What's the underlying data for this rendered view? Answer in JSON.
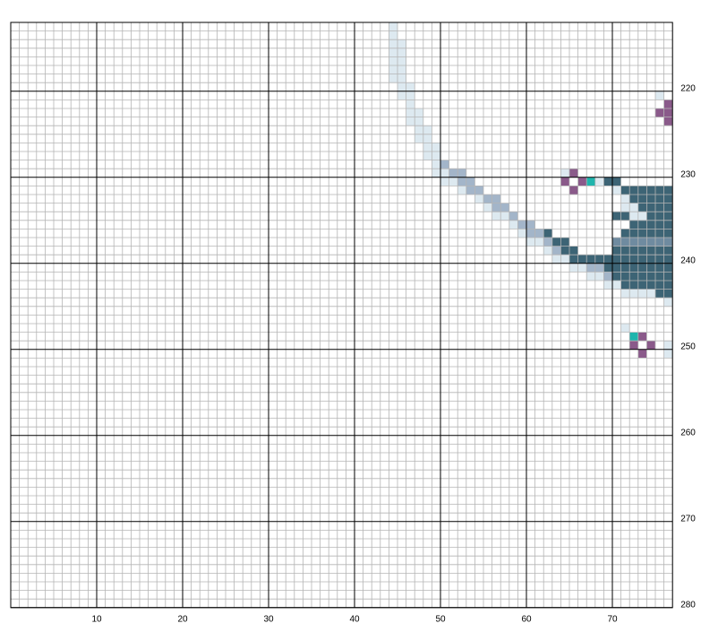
{
  "pattern": {
    "cols": [
      0,
      77
    ],
    "rows": [
      212,
      280
    ],
    "major": 10,
    "x_labels": [
      10,
      20,
      30,
      40,
      50,
      60,
      70
    ],
    "y_labels": [
      220,
      230,
      240,
      250,
      260,
      270,
      280
    ],
    "runs": [
      {
        "row": 212,
        "from": 44,
        "to": 44,
        "color": "#dde9f0"
      },
      {
        "row": 213,
        "from": 44,
        "to": 44,
        "color": "#dde9f0"
      },
      {
        "row": 214,
        "from": 44,
        "to": 45,
        "color": "#dde9f0"
      },
      {
        "row": 215,
        "from": 44,
        "to": 45,
        "color": "#dde9f0"
      },
      {
        "row": 216,
        "from": 44,
        "to": 45,
        "color": "#dde9f0"
      },
      {
        "row": 217,
        "from": 44,
        "to": 45,
        "color": "#dde9f0"
      },
      {
        "row": 218,
        "from": 44,
        "to": 45,
        "color": "#dde9f0"
      },
      {
        "row": 219,
        "from": 45,
        "to": 46,
        "color": "#dde9f0"
      },
      {
        "row": 220,
        "from": 45,
        "to": 46,
        "color": "#dde9f0"
      },
      {
        "row": 220,
        "from": 75,
        "to": 75,
        "color": "#dde9f0"
      },
      {
        "row": 221,
        "from": 46,
        "to": 46,
        "color": "#dde9f0"
      },
      {
        "row": 222,
        "from": 46,
        "to": 47,
        "color": "#dde9f0"
      },
      {
        "row": 223,
        "from": 46,
        "to": 47,
        "color": "#dde9f0"
      },
      {
        "row": 224,
        "from": 47,
        "to": 48,
        "color": "#dde9f0"
      },
      {
        "row": 225,
        "from": 47,
        "to": 48,
        "color": "#dde9f0"
      },
      {
        "row": 226,
        "from": 48,
        "to": 49,
        "color": "#dde9f0"
      },
      {
        "row": 227,
        "from": 48,
        "to": 49,
        "color": "#dde9f0"
      },
      {
        "row": 228,
        "from": 49,
        "to": 49,
        "color": "#dde9f0"
      },
      {
        "row": 228,
        "from": 50,
        "to": 50,
        "color": "#a3b5c9"
      },
      {
        "row": 229,
        "from": 49,
        "to": 50,
        "color": "#dde9f0"
      },
      {
        "row": 229,
        "from": 51,
        "to": 52,
        "color": "#a3b5c9"
      },
      {
        "row": 229,
        "from": 64,
        "to": 64,
        "color": "#dde9f0"
      },
      {
        "row": 230,
        "from": 50,
        "to": 51,
        "color": "#dde9f0"
      },
      {
        "row": 230,
        "from": 52,
        "to": 53,
        "color": "#a3b5c9"
      },
      {
        "row": 230,
        "from": 68,
        "to": 68,
        "color": "#dde9f0"
      },
      {
        "row": 230,
        "from": 69,
        "to": 70,
        "color": "#3d6475"
      },
      {
        "row": 231,
        "from": 52,
        "to": 52,
        "color": "#dde9f0"
      },
      {
        "row": 231,
        "from": 53,
        "to": 54,
        "color": "#a3b5c9"
      },
      {
        "row": 231,
        "from": 70,
        "to": 70,
        "color": "#dde9f0"
      },
      {
        "row": 231,
        "from": 71,
        "to": 76,
        "color": "#3d6475"
      },
      {
        "row": 232,
        "from": 54,
        "to": 54,
        "color": "#dde9f0"
      },
      {
        "row": 232,
        "from": 55,
        "to": 56,
        "color": "#a3b5c9"
      },
      {
        "row": 232,
        "from": 71,
        "to": 71,
        "color": "#dde9f0"
      },
      {
        "row": 232,
        "from": 72,
        "to": 76,
        "color": "#3d6475"
      },
      {
        "row": 233,
        "from": 55,
        "to": 55,
        "color": "#dde9f0"
      },
      {
        "row": 233,
        "from": 56,
        "to": 57,
        "color": "#a3b5c9"
      },
      {
        "row": 233,
        "from": 71,
        "to": 72,
        "color": "#dde9f0"
      },
      {
        "row": 233,
        "from": 73,
        "to": 76,
        "color": "#3d6475"
      },
      {
        "row": 234,
        "from": 56,
        "to": 57,
        "color": "#dde9f0"
      },
      {
        "row": 234,
        "from": 58,
        "to": 58,
        "color": "#a3b5c9"
      },
      {
        "row": 234,
        "from": 70,
        "to": 71,
        "color": "#3d6475"
      },
      {
        "row": 234,
        "from": 72,
        "to": 73,
        "color": "#dde9f0"
      },
      {
        "row": 234,
        "from": 74,
        "to": 76,
        "color": "#3d6475"
      },
      {
        "row": 235,
        "from": 58,
        "to": 58,
        "color": "#dde9f0"
      },
      {
        "row": 235,
        "from": 59,
        "to": 60,
        "color": "#a3b5c9"
      },
      {
        "row": 235,
        "from": 72,
        "to": 76,
        "color": "#3d6475"
      },
      {
        "row": 236,
        "from": 59,
        "to": 59,
        "color": "#dde9f0"
      },
      {
        "row": 236,
        "from": 60,
        "to": 61,
        "color": "#a3b5c9"
      },
      {
        "row": 236,
        "from": 62,
        "to": 62,
        "color": "#3d6475"
      },
      {
        "row": 236,
        "from": 71,
        "to": 76,
        "color": "#3d6475"
      },
      {
        "row": 237,
        "from": 60,
        "to": 61,
        "color": "#dde9f0"
      },
      {
        "row": 237,
        "from": 62,
        "to": 62,
        "color": "#a3b5c9"
      },
      {
        "row": 237,
        "from": 63,
        "to": 64,
        "color": "#3d6475"
      },
      {
        "row": 237,
        "from": 70,
        "to": 76,
        "color": "#6f8ba0"
      },
      {
        "row": 238,
        "from": 62,
        "to": 62,
        "color": "#dde9f0"
      },
      {
        "row": 238,
        "from": 63,
        "to": 63,
        "color": "#a3b5c9"
      },
      {
        "row": 238,
        "from": 64,
        "to": 65,
        "color": "#3d6475"
      },
      {
        "row": 238,
        "from": 70,
        "to": 76,
        "color": "#3d6475"
      },
      {
        "row": 239,
        "from": 63,
        "to": 64,
        "color": "#dde9f0"
      },
      {
        "row": 239,
        "from": 65,
        "to": 76,
        "color": "#3d6475"
      },
      {
        "row": 240,
        "from": 65,
        "to": 66,
        "color": "#dde9f0"
      },
      {
        "row": 240,
        "from": 67,
        "to": 68,
        "color": "#a3b5c9"
      },
      {
        "row": 240,
        "from": 69,
        "to": 76,
        "color": "#3d6475"
      },
      {
        "row": 241,
        "from": 67,
        "to": 68,
        "color": "#dde9f0"
      },
      {
        "row": 241,
        "from": 69,
        "to": 69,
        "color": "#a3b5c9"
      },
      {
        "row": 241,
        "from": 70,
        "to": 76,
        "color": "#3d6475"
      },
      {
        "row": 242,
        "from": 69,
        "to": 70,
        "color": "#dde9f0"
      },
      {
        "row": 242,
        "from": 71,
        "to": 76,
        "color": "#3d6475"
      },
      {
        "row": 243,
        "from": 71,
        "to": 74,
        "color": "#dde9f0"
      },
      {
        "row": 243,
        "from": 75,
        "to": 76,
        "color": "#3d6475"
      },
      {
        "row": 244,
        "from": 76,
        "to": 76,
        "color": "#dde9f0"
      },
      {
        "row": 247,
        "from": 71,
        "to": 71,
        "color": "#dde9f0"
      },
      {
        "row": 249,
        "from": 76,
        "to": 76,
        "color": "#dde9f0"
      },
      {
        "row": 250,
        "from": 76,
        "to": 76,
        "color": "#dde9f0"
      },
      {
        "row": 229,
        "from": 65,
        "to": 65,
        "color": "#8a5a8a"
      },
      {
        "row": 230,
        "from": 64,
        "to": 64,
        "color": "#8a5a8a"
      },
      {
        "row": 230,
        "from": 66,
        "to": 66,
        "color": "#8a5a8a"
      },
      {
        "row": 231,
        "from": 65,
        "to": 65,
        "color": "#8a5a8a"
      },
      {
        "row": 230,
        "from": 67,
        "to": 67,
        "color": "#1fb5ad"
      },
      {
        "row": 221,
        "from": 76,
        "to": 76,
        "color": "#8a5a8a"
      },
      {
        "row": 222,
        "from": 75,
        "to": 76,
        "color": "#8a5a8a"
      },
      {
        "row": 223,
        "from": 76,
        "to": 76,
        "color": "#8a5a8a"
      },
      {
        "row": 248,
        "from": 72,
        "to": 72,
        "color": "#1fb5ad"
      },
      {
        "row": 248,
        "from": 73,
        "to": 73,
        "color": "#8a5a8a"
      },
      {
        "row": 249,
        "from": 72,
        "to": 72,
        "color": "#8a5a8a"
      },
      {
        "row": 249,
        "from": 74,
        "to": 74,
        "color": "#8a5a8a"
      },
      {
        "row": 250,
        "from": 73,
        "to": 73,
        "color": "#8a5a8a"
      }
    ]
  }
}
